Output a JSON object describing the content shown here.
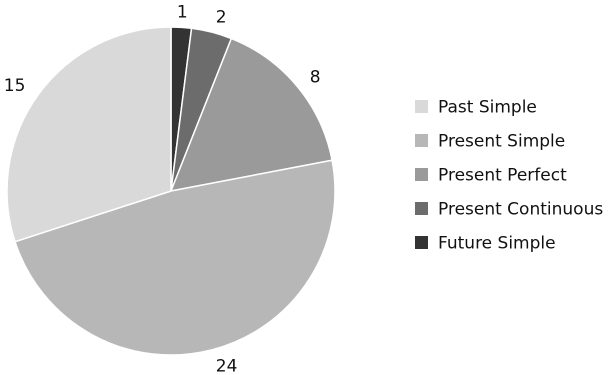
{
  "chart_data": {
    "type": "pie",
    "categories": [
      "Past Simple",
      "Present Simple",
      "Present Perfect",
      "Present Continuous",
      "Future Simple"
    ],
    "values": [
      15,
      24,
      8,
      2,
      1
    ],
    "data_labels": [
      "15",
      "24",
      "8",
      "2",
      "1"
    ],
    "colors": [
      "#d9d9d9",
      "#b7b7b7",
      "#9a9a9a",
      "#6c6c6c",
      "#333333"
    ],
    "start_angle_deg": 0,
    "direction": "clockwise",
    "legend_position": "right"
  }
}
